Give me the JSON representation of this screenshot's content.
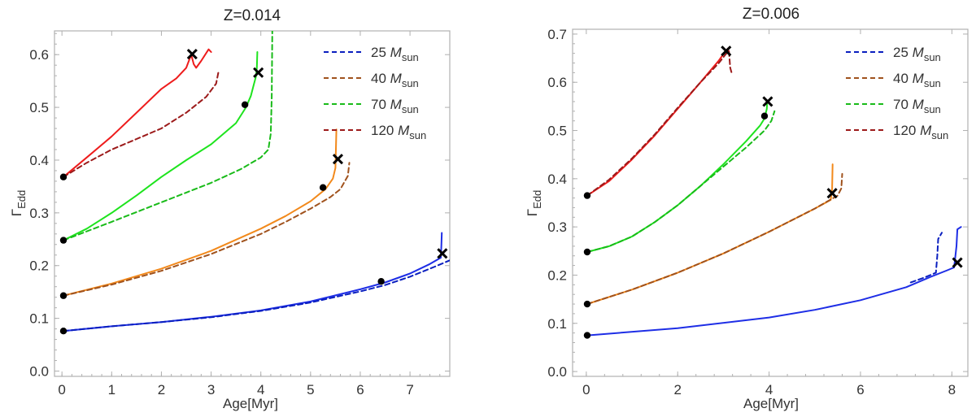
{
  "chart_data": [
    {
      "type": "line",
      "title": "Z=0.014",
      "xlabel": "Age[Myr]",
      "ylabel_main": "Γ",
      "ylabel_sub": "Edd",
      "xlim": [
        -0.15,
        7.8
      ],
      "ylim": [
        -0.01,
        0.645
      ],
      "xticks": [
        "0",
        "1",
        "2",
        "3",
        "4",
        "5",
        "6",
        "7"
      ],
      "yticks": [
        "0.0",
        "0.1",
        "0.2",
        "0.3",
        "0.4",
        "0.5",
        "0.6"
      ],
      "legend": [
        {
          "label": "25",
          "unit": "M",
          "unit_sub": "sun",
          "color": "#0a1fbf"
        },
        {
          "label": "40",
          "unit": "M",
          "unit_sub": "sun",
          "color": "#a0521d"
        },
        {
          "label": "70",
          "unit": "M",
          "unit_sub": "sun",
          "color": "#19bb19"
        },
        {
          "label": "120",
          "unit": "M",
          "unit_sub": "sun",
          "color": "#9c1a1a"
        }
      ],
      "series": [
        {
          "name": "25 solid",
          "color": "#1e2ee6",
          "dash": false,
          "points": [
            [
              0.03,
              0.076
            ],
            [
              1,
              0.085
            ],
            [
              2,
              0.093
            ],
            [
              3,
              0.103
            ],
            [
              4,
              0.115
            ],
            [
              5,
              0.132
            ],
            [
              6,
              0.155
            ],
            [
              6.5,
              0.168
            ],
            [
              7,
              0.185
            ],
            [
              7.4,
              0.203
            ],
            [
              7.62,
              0.215
            ],
            [
              7.63,
              0.235
            ],
            [
              7.64,
              0.262
            ]
          ]
        },
        {
          "name": "25 dashed",
          "color": "#0a1fbf",
          "dash": true,
          "points": [
            [
              0.03,
              0.076
            ],
            [
              1,
              0.085
            ],
            [
              2,
              0.093
            ],
            [
              3,
              0.102
            ],
            [
              4,
              0.114
            ],
            [
              5,
              0.13
            ],
            [
              6,
              0.151
            ],
            [
              6.5,
              0.163
            ],
            [
              7,
              0.179
            ],
            [
              7.5,
              0.198
            ],
            [
              7.8,
              0.21
            ]
          ]
        },
        {
          "name": "40 solid",
          "color": "#f2891b",
          "dash": false,
          "points": [
            [
              0.03,
              0.143
            ],
            [
              1,
              0.166
            ],
            [
              2,
              0.194
            ],
            [
              3,
              0.228
            ],
            [
              4,
              0.27
            ],
            [
              4.5,
              0.294
            ],
            [
              5,
              0.322
            ],
            [
              5.3,
              0.345
            ],
            [
              5.45,
              0.365
            ],
            [
              5.5,
              0.385
            ],
            [
              5.51,
              0.42
            ],
            [
              5.52,
              0.458
            ]
          ]
        },
        {
          "name": "40 dashed",
          "color": "#a0521d",
          "dash": true,
          "points": [
            [
              0.03,
              0.143
            ],
            [
              1,
              0.164
            ],
            [
              2,
              0.19
            ],
            [
              3,
              0.222
            ],
            [
              4,
              0.26
            ],
            [
              4.5,
              0.283
            ],
            [
              5,
              0.308
            ],
            [
              5.4,
              0.33
            ],
            [
              5.6,
              0.345
            ],
            [
              5.75,
              0.37
            ],
            [
              5.78,
              0.395
            ]
          ]
        },
        {
          "name": "70 solid",
          "color": "#1ee41e",
          "dash": false,
          "points": [
            [
              0.03,
              0.248
            ],
            [
              0.5,
              0.27
            ],
            [
              1,
              0.3
            ],
            [
              1.5,
              0.333
            ],
            [
              2,
              0.368
            ],
            [
              2.5,
              0.4
            ],
            [
              3,
              0.43
            ],
            [
              3.5,
              0.47
            ],
            [
              3.7,
              0.5
            ],
            [
              3.8,
              0.522
            ],
            [
              3.85,
              0.54
            ],
            [
              3.9,
              0.558
            ],
            [
              3.92,
              0.575
            ],
            [
              3.93,
              0.605
            ]
          ]
        },
        {
          "name": "70 dashed",
          "color": "#19bb19",
          "dash": true,
          "points": [
            [
              0.03,
              0.248
            ],
            [
              1,
              0.283
            ],
            [
              2,
              0.32
            ],
            [
              3,
              0.357
            ],
            [
              3.6,
              0.383
            ],
            [
              4,
              0.405
            ],
            [
              4.15,
              0.42
            ],
            [
              4.2,
              0.45
            ],
            [
              4.22,
              0.52
            ],
            [
              4.23,
              0.645
            ]
          ]
        },
        {
          "name": "120 solid",
          "color": "#ee1c1c",
          "dash": false,
          "points": [
            [
              0.03,
              0.368
            ],
            [
              0.5,
              0.405
            ],
            [
              1,
              0.445
            ],
            [
              1.5,
              0.49
            ],
            [
              2,
              0.535
            ],
            [
              2.3,
              0.555
            ],
            [
              2.5,
              0.575
            ],
            [
              2.6,
              0.6
            ],
            [
              2.65,
              0.582
            ],
            [
              2.7,
              0.575
            ],
            [
              2.8,
              0.588
            ],
            [
              2.95,
              0.61
            ],
            [
              3,
              0.605
            ]
          ]
        },
        {
          "name": "120 dashed",
          "color": "#9c1a1a",
          "dash": true,
          "points": [
            [
              0.03,
              0.368
            ],
            [
              0.5,
              0.395
            ],
            [
              1,
              0.42
            ],
            [
              1.5,
              0.44
            ],
            [
              2,
              0.46
            ],
            [
              2.5,
              0.49
            ],
            [
              2.9,
              0.52
            ],
            [
              3.1,
              0.545
            ],
            [
              3.15,
              0.568
            ]
          ]
        }
      ],
      "dots": [
        [
          0.03,
          0.076
        ],
        [
          6.42,
          0.17
        ],
        [
          0.03,
          0.143
        ],
        [
          5.25,
          0.348
        ],
        [
          0.03,
          0.248
        ],
        [
          3.68,
          0.505
        ],
        [
          0.03,
          0.368
        ]
      ],
      "crosses": [
        [
          7.65,
          0.223
        ],
        [
          5.55,
          0.402
        ],
        [
          3.95,
          0.566
        ],
        [
          2.62,
          0.601
        ]
      ]
    },
    {
      "type": "line",
      "title": "Z=0.006",
      "xlabel": "Age[Myr]",
      "ylabel_main": "Γ",
      "ylabel_sub": "Edd",
      "xlim": [
        -0.3,
        8.35
      ],
      "ylim": [
        -0.01,
        0.71
      ],
      "xticks": [
        "0",
        "2",
        "4",
        "6",
        "8"
      ],
      "yticks": [
        "0.0",
        "0.1",
        "0.2",
        "0.3",
        "0.4",
        "0.5",
        "0.6",
        "0.7"
      ],
      "legend": [
        {
          "label": "25",
          "unit": "M",
          "unit_sub": "sun",
          "color": "#0a1fbf"
        },
        {
          "label": "40",
          "unit": "M",
          "unit_sub": "sun",
          "color": "#a0521d"
        },
        {
          "label": "70",
          "unit": "M",
          "unit_sub": "sun",
          "color": "#19bb19"
        },
        {
          "label": "120",
          "unit": "M",
          "unit_sub": "sun",
          "color": "#9c1a1a"
        }
      ],
      "series": [
        {
          "name": "25 solid",
          "color": "#1e2ee6",
          "dash": false,
          "points": [
            [
              0.02,
              0.075
            ],
            [
              2,
              0.09
            ],
            [
              4,
              0.112
            ],
            [
              5,
              0.128
            ],
            [
              6,
              0.148
            ],
            [
              7,
              0.175
            ],
            [
              7.5,
              0.195
            ],
            [
              7.9,
              0.21
            ],
            [
              8.05,
              0.216
            ],
            [
              8.1,
              0.26
            ],
            [
              8.12,
              0.295
            ],
            [
              8.2,
              0.3
            ]
          ]
        },
        {
          "name": "25 dashed",
          "color": "#0a1fbf",
          "dash": true,
          "points": [
            [
              7.1,
              0.185
            ],
            [
              7.4,
              0.195
            ],
            [
              7.65,
              0.205
            ],
            [
              7.68,
              0.24
            ],
            [
              7.7,
              0.275
            ],
            [
              7.78,
              0.288
            ]
          ]
        },
        {
          "name": "40 solid",
          "color": "#f2891b",
          "dash": false,
          "points": [
            [
              0.02,
              0.14
            ],
            [
              1,
              0.17
            ],
            [
              2,
              0.205
            ],
            [
              3,
              0.245
            ],
            [
              4,
              0.29
            ],
            [
              5,
              0.338
            ],
            [
              5.35,
              0.356
            ],
            [
              5.38,
              0.38
            ],
            [
              5.39,
              0.43
            ]
          ]
        },
        {
          "name": "40 dashed",
          "color": "#a0521d",
          "dash": true,
          "points": [
            [
              0.02,
              0.14
            ],
            [
              1,
              0.17
            ],
            [
              2,
              0.205
            ],
            [
              3,
              0.245
            ],
            [
              4,
              0.29
            ],
            [
              5,
              0.338
            ],
            [
              5.5,
              0.365
            ],
            [
              5.58,
              0.38
            ],
            [
              5.6,
              0.41
            ]
          ]
        },
        {
          "name": "70 solid",
          "color": "#1ee41e",
          "dash": false,
          "points": [
            [
              0.02,
              0.248
            ],
            [
              0.5,
              0.26
            ],
            [
              1,
              0.28
            ],
            [
              1.5,
              0.31
            ],
            [
              2,
              0.345
            ],
            [
              2.5,
              0.385
            ],
            [
              3,
              0.43
            ],
            [
              3.5,
              0.478
            ],
            [
              3.8,
              0.51
            ],
            [
              3.9,
              0.525
            ],
            [
              3.95,
              0.545
            ],
            [
              3.96,
              0.56
            ]
          ]
        },
        {
          "name": "70 dashed",
          "color": "#19bb19",
          "dash": true,
          "points": [
            [
              0.02,
              0.248
            ],
            [
              0.5,
              0.26
            ],
            [
              1,
              0.28
            ],
            [
              1.5,
              0.31
            ],
            [
              2,
              0.345
            ],
            [
              2.5,
              0.385
            ],
            [
              3,
              0.425
            ],
            [
              3.5,
              0.465
            ],
            [
              3.9,
              0.5
            ],
            [
              4.05,
              0.52
            ],
            [
              4.12,
              0.54
            ]
          ]
        },
        {
          "name": "120 solid",
          "color": "#ee1c1c",
          "dash": false,
          "points": [
            [
              0.02,
              0.365
            ],
            [
              0.5,
              0.395
            ],
            [
              1,
              0.44
            ],
            [
              1.5,
              0.49
            ],
            [
              2,
              0.545
            ],
            [
              2.5,
              0.6
            ],
            [
              2.9,
              0.645
            ],
            [
              3.05,
              0.665
            ],
            [
              3.1,
              0.67
            ],
            [
              3.12,
              0.66
            ]
          ]
        },
        {
          "name": "120 dashed",
          "color": "#9c1a1a",
          "dash": true,
          "points": [
            [
              0.02,
              0.365
            ],
            [
              0.5,
              0.398
            ],
            [
              1,
              0.442
            ],
            [
              1.5,
              0.492
            ],
            [
              2,
              0.547
            ],
            [
              2.5,
              0.6
            ],
            [
              2.9,
              0.64
            ],
            [
              3.05,
              0.658
            ],
            [
              3.12,
              0.665
            ],
            [
              3.15,
              0.63
            ],
            [
              3.18,
              0.62
            ]
          ]
        }
      ],
      "dots": [
        [
          0.02,
          0.075
        ],
        [
          0.02,
          0.14
        ],
        [
          0.02,
          0.248
        ],
        [
          3.9,
          0.53
        ],
        [
          0.02,
          0.365
        ]
      ],
      "crosses": [
        [
          8.12,
          0.226
        ],
        [
          5.38,
          0.37
        ],
        [
          3.97,
          0.56
        ],
        [
          3.06,
          0.665
        ]
      ]
    }
  ]
}
